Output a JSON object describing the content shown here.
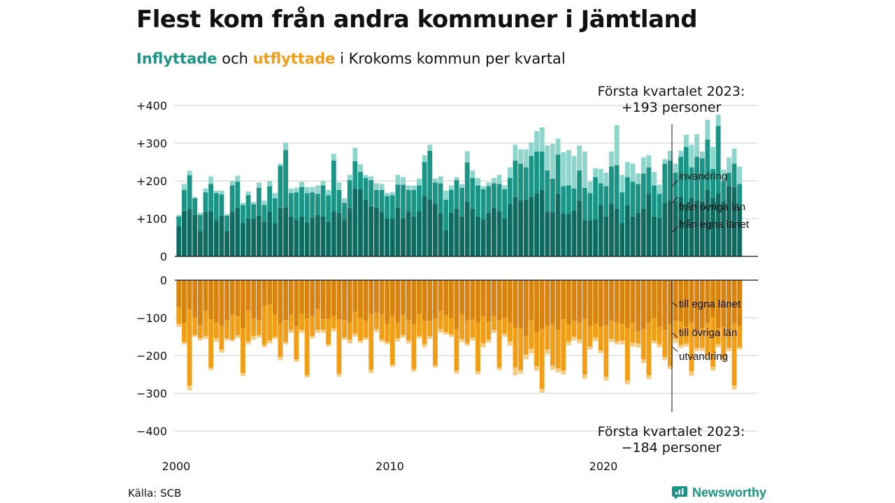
{
  "title": "Flest kom från andra kommuner i Jämtland",
  "subtitle": {
    "part1": "Inflyttade",
    "part2": " och ",
    "part3": "utflyttade",
    "part4": " i Krokoms kommun per kvartal"
  },
  "source": "Källa: SCB",
  "logo_text": "Newsworthy",
  "colors": {
    "in_egna": "#0f6a5f",
    "in_ovriga": "#1a9485",
    "in_invandring": "#8ed5cc",
    "out_egna": "#d9830e",
    "out_ovriga": "#f29d16",
    "out_utvandring": "#f8cb83",
    "grid": "#dddddd"
  },
  "chart_data": {
    "type": "bar",
    "x_start": 2000,
    "periods_per_year": 4,
    "x_ticks": [
      "2000",
      "2010",
      "2020"
    ],
    "upper": {
      "ylim": [
        0,
        400
      ],
      "y_ticks": [
        "0",
        "+100",
        "+200",
        "+300",
        "+400"
      ],
      "series": [
        {
          "name": "från egna länet",
          "values": [
            80,
            120,
            125,
            110,
            68,
            118,
            120,
            96,
            108,
            68,
            118,
            128,
            88,
            100,
            100,
            108,
            92,
            120,
            88,
            128,
            130,
            106,
            98,
            106,
            90,
            102,
            110,
            106,
            92,
            120,
            116,
            98,
            128,
            180,
            178,
            150,
            132,
            130,
            118,
            100,
            100,
            130,
            100,
            120,
            106,
            120,
            160,
            150,
            138,
            114,
            70,
            116,
            126,
            106,
            145,
            126,
            106,
            98,
            116,
            128,
            120,
            100,
            138,
            158,
            148,
            150,
            158,
            168,
            176,
            120,
            118,
            166,
            114,
            112,
            122,
            148,
            96,
            96,
            98,
            136,
            106,
            138,
            126,
            88,
            136,
            106,
            116,
            126,
            166,
            106,
            102,
            142,
            148,
            146,
            158,
            138,
            156,
            148,
            146,
            176,
            156,
            168,
            146,
            186,
            184,
            130
          ]
        },
        {
          "name": "från övriga län",
          "values": [
            26,
            56,
            90,
            44,
            42,
            52,
            72,
            72,
            56,
            40,
            70,
            70,
            48,
            62,
            38,
            74,
            44,
            66,
            66,
            112,
            152,
            62,
            72,
            78,
            78,
            68,
            56,
            82,
            70,
            134,
            60,
            44,
            74,
            72,
            46,
            58,
            70,
            46,
            58,
            60,
            62,
            60,
            90,
            56,
            70,
            68,
            90,
            130,
            58,
            80,
            80,
            60,
            76,
            76,
            104,
            82,
            82,
            80,
            70,
            66,
            72,
            78,
            70,
            96,
            98,
            86,
            108,
            110,
            102,
            108,
            88,
            104,
            72,
            76,
            58,
            80,
            86,
            72,
            112,
            58,
            80,
            100,
            116,
            82,
            74,
            92,
            76,
            94,
            70,
            82,
            64,
            104,
            106,
            76,
            106,
            152,
            80,
            116,
            114,
            134,
            76,
            178,
            52,
            36,
            62,
            62
          ]
        },
        {
          "name": "invandring",
          "values": [
            4,
            16,
            12,
            4,
            6,
            10,
            20,
            6,
            10,
            4,
            12,
            16,
            6,
            10,
            6,
            14,
            12,
            14,
            14,
            6,
            20,
            12,
            12,
            14,
            16,
            14,
            22,
            12,
            14,
            18,
            20,
            12,
            14,
            36,
            20,
            8,
            10,
            18,
            16,
            8,
            8,
            26,
            20,
            12,
            12,
            18,
            18,
            16,
            10,
            18,
            24,
            12,
            8,
            10,
            30,
            20,
            20,
            8,
            10,
            14,
            24,
            10,
            28,
            42,
            38,
            48,
            36,
            54,
            64,
            66,
            92,
            42,
            90,
            94,
            86,
            66,
            96,
            30,
            24,
            38,
            36,
            40,
            106,
            46,
            40,
            48,
            28,
            42,
            32,
            36,
            24,
            12,
            26,
            24,
            16,
            32,
            60,
            60,
            18,
            52,
            58,
            30,
            32,
            40,
            40,
            46
          ]
        }
      ],
      "annotation_line1": "Första kvartalet 2023:",
      "annotation_line2": "+193 personer",
      "labels": [
        "invandring",
        "från övriga län",
        "från egna länet"
      ]
    },
    "lower": {
      "ylim": [
        -400,
        0
      ],
      "y_ticks": [
        "0",
        "−100",
        "−200",
        "−300",
        "−400"
      ],
      "series": [
        {
          "name": "till egna länet",
          "values": [
            -72,
            -112,
            -78,
            -98,
            -120,
            -82,
            -104,
            -112,
            -122,
            -106,
            -92,
            -96,
            -128,
            -80,
            -100,
            -106,
            -68,
            -64,
            -92,
            -114,
            -106,
            -92,
            -122,
            -88,
            -102,
            -96,
            -76,
            -102,
            -104,
            -96,
            -104,
            -106,
            -112,
            -84,
            -100,
            -108,
            -90,
            -86,
            -90,
            -116,
            -96,
            -112,
            -92,
            -106,
            -118,
            -88,
            -108,
            -108,
            -102,
            -82,
            -94,
            -100,
            -130,
            -92,
            -108,
            -104,
            -112,
            -96,
            -110,
            -96,
            -106,
            -100,
            -112,
            -126,
            -126,
            -148,
            -106,
            -138,
            -130,
            -122,
            -118,
            -132,
            -104,
            -118,
            -108,
            -112,
            -102,
            -122,
            -116,
            -124,
            -120,
            -108,
            -112,
            -116,
            -126,
            -114,
            -136,
            -130,
            -112,
            -100,
            -124,
            -132,
            -118,
            -108,
            -110,
            -124,
            -112,
            -134,
            -126,
            -114,
            -98,
            -128,
            -124,
            -132,
            -116,
            -122
          ]
        },
        {
          "name": "till övriga län",
          "values": [
            -44,
            -52,
            -202,
            -48,
            -34,
            -66,
            -128,
            -42,
            -62,
            -48,
            -66,
            -50,
            -118,
            -82,
            -48,
            -40,
            -104,
            -96,
            -58,
            -90,
            -58,
            -40,
            -88,
            -44,
            -150,
            -52,
            -56,
            -30,
            -66,
            -32,
            -144,
            -46,
            -46,
            -58,
            -60,
            -44,
            -148,
            -44,
            -68,
            -48,
            -128,
            -42,
            -54,
            -54,
            -118,
            -60,
            -62,
            -40,
            -124,
            -48,
            -44,
            -44,
            -110,
            -64,
            -60,
            -48,
            -130,
            -72,
            -48,
            -36,
            -126,
            -42,
            -50,
            -106,
            -112,
            -50,
            -76,
            -90,
            -158,
            -62,
            -108,
            -102,
            -136,
            -44,
            -42,
            -46,
            -148,
            -54,
            -36,
            -62,
            -136,
            -48,
            -50,
            -44,
            -140,
            -52,
            -32,
            -80,
            -140,
            -60,
            -46,
            -72,
            -110,
            -48,
            -62,
            -44,
            -130,
            -46,
            -54,
            -84,
            -132,
            -42,
            -82,
            -48,
            -164,
            -56
          ]
        },
        {
          "name": "utvandring",
          "values": [
            -8,
            -6,
            -12,
            -4,
            -6,
            -8,
            -6,
            -10,
            -8,
            -6,
            -4,
            -8,
            -8,
            -8,
            -10,
            -6,
            -6,
            -8,
            -6,
            -8,
            -6,
            -8,
            -6,
            -8,
            -6,
            -6,
            -8,
            -8,
            -6,
            -8,
            -8,
            -6,
            -10,
            -8,
            -6,
            -6,
            -8,
            -8,
            -6,
            -6,
            -6,
            -8,
            -6,
            -8,
            -6,
            -6,
            -8,
            -8,
            -6,
            -10,
            -6,
            -6,
            -8,
            -8,
            -6,
            -8,
            -8,
            -10,
            -8,
            -8,
            -6,
            -8,
            -12,
            -20,
            -10,
            -12,
            -12,
            -12,
            -10,
            -12,
            -12,
            -10,
            -10,
            -10,
            -10,
            -10,
            -12,
            -8,
            -10,
            -8,
            -10,
            -8,
            -8,
            -10,
            -10,
            -10,
            -10,
            -10,
            -10,
            -8,
            -8,
            -8,
            -8,
            -10,
            -8,
            -8,
            -12,
            -8,
            -8,
            -10,
            -10,
            -8,
            -10,
            -8,
            -10,
            -6
          ]
        }
      ],
      "annotation_line1": "Första kvartalet 2023:",
      "annotation_line2": "−184 personer",
      "labels": [
        "till egna länet",
        "till övriga län",
        "utvandring"
      ]
    }
  }
}
